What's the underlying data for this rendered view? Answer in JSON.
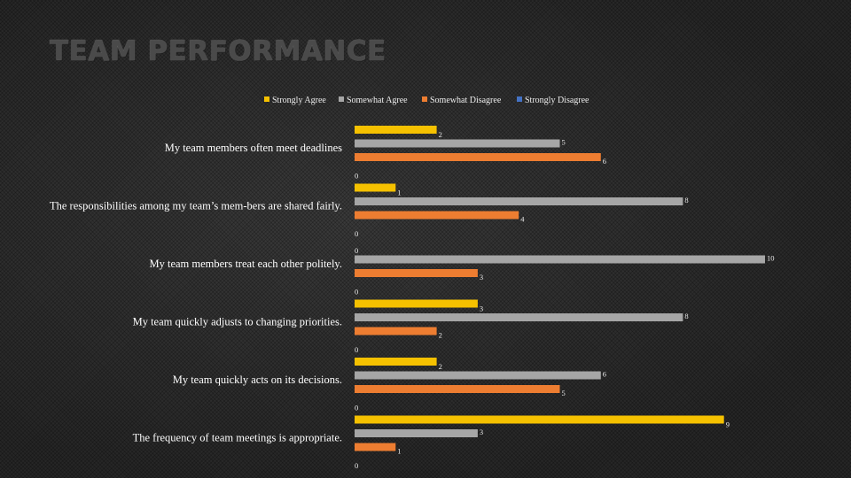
{
  "title": "TEAM PERFORMANCE",
  "chart_data": {
    "type": "bar",
    "orientation": "horizontal",
    "categories": [
      "My team members often meet deadlines",
      "The responsibilities among my team’s mem-bers are shared fairly.",
      "My team members treat each other politely.",
      "My team quickly adjusts to changing priorities.",
      "My team quickly acts on its decisions.",
      "The frequency of team meetings is appropriate."
    ],
    "series": [
      {
        "name": "Strongly Agree",
        "values": [
          2,
          1,
          0,
          3,
          2,
          9
        ],
        "color": "#f5c100"
      },
      {
        "name": "Somewhat Agree",
        "values": [
          5,
          8,
          10,
          8,
          6,
          3
        ],
        "color": "#a6a6a6"
      },
      {
        "name": "Somewhat Disagree",
        "values": [
          6,
          4,
          3,
          2,
          5,
          1
        ],
        "color": "#ed7d31"
      },
      {
        "name": "Strongly Disagree",
        "values": [
          0,
          0,
          0,
          0,
          0,
          0
        ],
        "color": "#4472c4"
      }
    ],
    "xlim": [
      0,
      10
    ],
    "legend": "top",
    "grid": false,
    "axes_visible": false
  }
}
